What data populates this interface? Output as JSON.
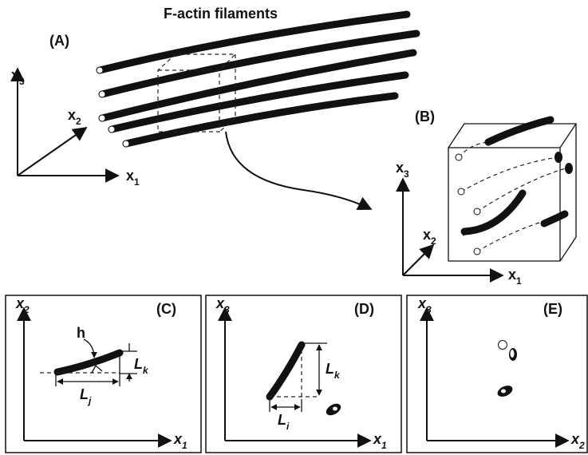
{
  "title": "F-actin filaments",
  "panels": [
    {
      "label": "(A)"
    },
    {
      "label": "(B)"
    },
    {
      "label": "(C)"
    },
    {
      "label": "(D)"
    },
    {
      "label": "(E)"
    }
  ],
  "axes": {
    "A": [
      {
        "base": "x",
        "sub": "3"
      },
      {
        "base": "x",
        "sub": "2"
      },
      {
        "base": "x",
        "sub": "1"
      }
    ],
    "B": [
      {
        "base": "x",
        "sub": "3"
      },
      {
        "base": "x",
        "sub": "2"
      },
      {
        "base": "x",
        "sub": "1"
      }
    ],
    "C": [
      {
        "base": "x",
        "sub": "2"
      },
      {
        "base": "x",
        "sub": "1"
      }
    ],
    "D": [
      {
        "base": "x",
        "sub": "3"
      },
      {
        "base": "x",
        "sub": "1"
      }
    ],
    "E": [
      {
        "base": "x",
        "sub": "3"
      },
      {
        "base": "x",
        "sub": "2"
      }
    ]
  },
  "dimension_labels": {
    "h": "h",
    "C_k": {
      "base": "L",
      "sub": "k"
    },
    "C_j": {
      "base": "L",
      "sub": "j"
    },
    "D_k": {
      "base": "L",
      "sub": "k"
    },
    "D_i": {
      "base": "L",
      "sub": "i"
    }
  }
}
